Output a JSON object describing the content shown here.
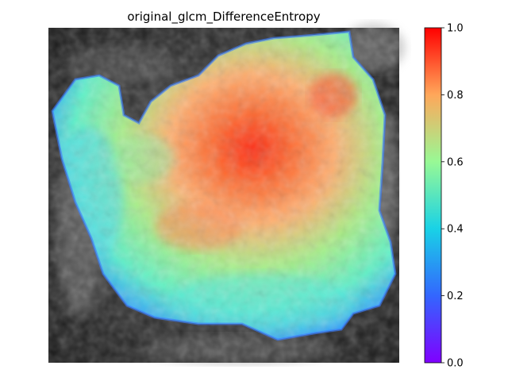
{
  "figure": {
    "title": "original_glcm_DifferenceEntropy"
  },
  "colorbar": {
    "colormap": "rainbow",
    "range": [
      0.0,
      1.0
    ],
    "ticks": [
      {
        "value": 0.0,
        "label": "0.0"
      },
      {
        "value": 0.2,
        "label": "0.2"
      },
      {
        "value": 0.4,
        "label": "0.4"
      },
      {
        "value": 0.6,
        "label": "0.6"
      },
      {
        "value": 0.8,
        "label": "0.8"
      },
      {
        "value": 1.0,
        "label": "1.0"
      }
    ]
  },
  "colors": {
    "background": "#ffffff",
    "mri_dark": "#1e1e1e",
    "mri_light": "#bdbdbd"
  }
}
